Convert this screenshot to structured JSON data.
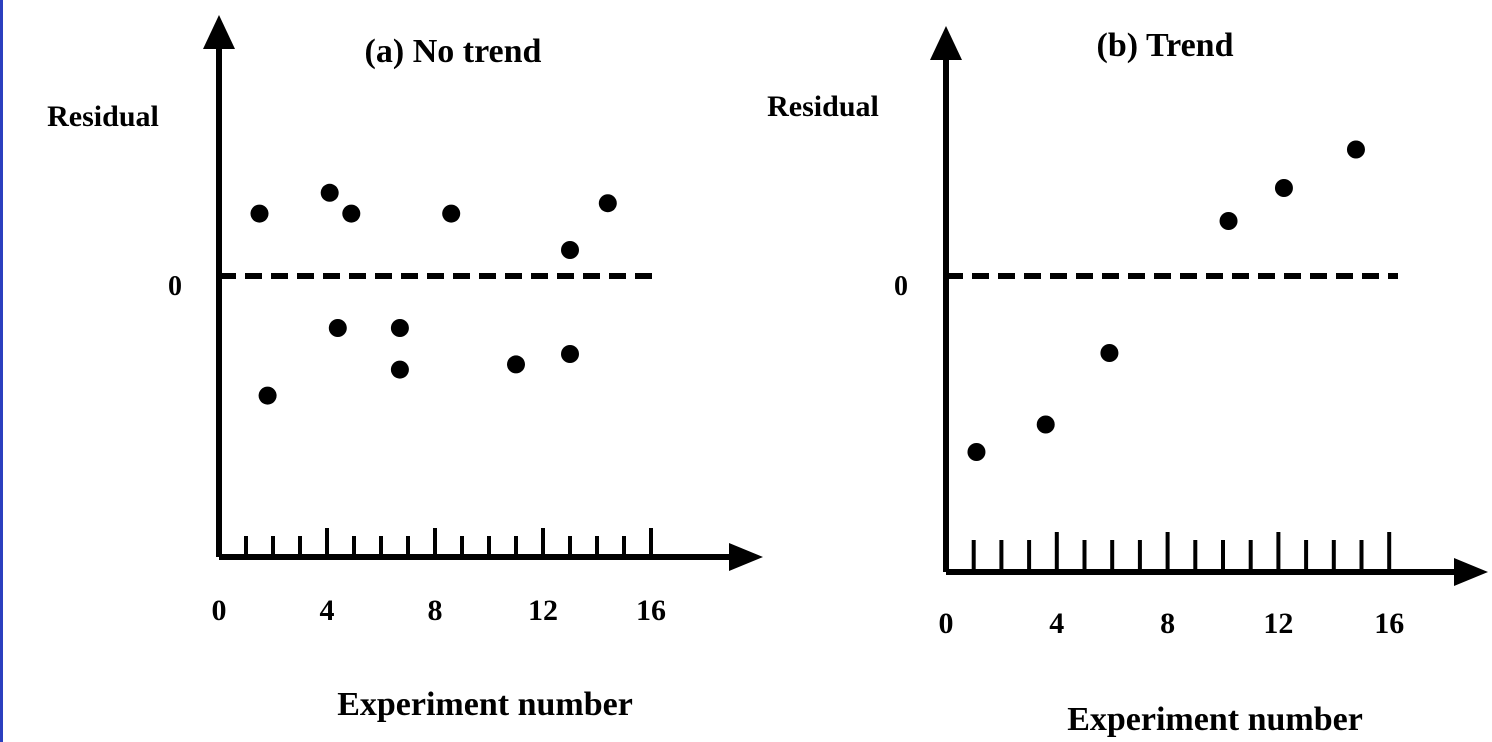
{
  "colors": {
    "ink": "#000000",
    "background": "#ffffff",
    "frame": "#2b3fbf"
  },
  "chart_data": [
    {
      "type": "scatter",
      "title": "(a) No trend",
      "ylabel": "Residual",
      "xlabel": "Experiment number",
      "zero_label": "0",
      "xlim": [
        0,
        16
      ],
      "x_ticks": [
        "0",
        "4",
        "8",
        "12",
        "16"
      ],
      "reference_line": {
        "y": 0,
        "style": "dashed"
      },
      "points": [
        {
          "x": 1.5,
          "y": 1.2
        },
        {
          "x": 1.8,
          "y": -2.3
        },
        {
          "x": 4.1,
          "y": 1.6
        },
        {
          "x": 4.4,
          "y": -1.0
        },
        {
          "x": 4.9,
          "y": 1.2
        },
        {
          "x": 6.7,
          "y": -1.0
        },
        {
          "x": 6.7,
          "y": -1.8
        },
        {
          "x": 8.6,
          "y": 1.2
        },
        {
          "x": 11.0,
          "y": -1.7
        },
        {
          "x": 13.0,
          "y": 0.5
        },
        {
          "x": 13.0,
          "y": -1.5
        },
        {
          "x": 14.4,
          "y": 1.4
        }
      ]
    },
    {
      "type": "scatter",
      "title": "(b) Trend",
      "ylabel": "Residual",
      "xlabel": "Experiment number",
      "zero_label": "0",
      "xlim": [
        0,
        16
      ],
      "x_ticks": [
        "0",
        "4",
        "8",
        "12",
        "16"
      ],
      "reference_line": {
        "y": 0,
        "style": "dashed"
      },
      "points": [
        {
          "x": 1.1,
          "y": -3.2
        },
        {
          "x": 3.6,
          "y": -2.7
        },
        {
          "x": 5.9,
          "y": -1.4
        },
        {
          "x": 10.2,
          "y": 1.0
        },
        {
          "x": 12.2,
          "y": 1.6
        },
        {
          "x": 14.8,
          "y": 2.3
        }
      ]
    }
  ]
}
